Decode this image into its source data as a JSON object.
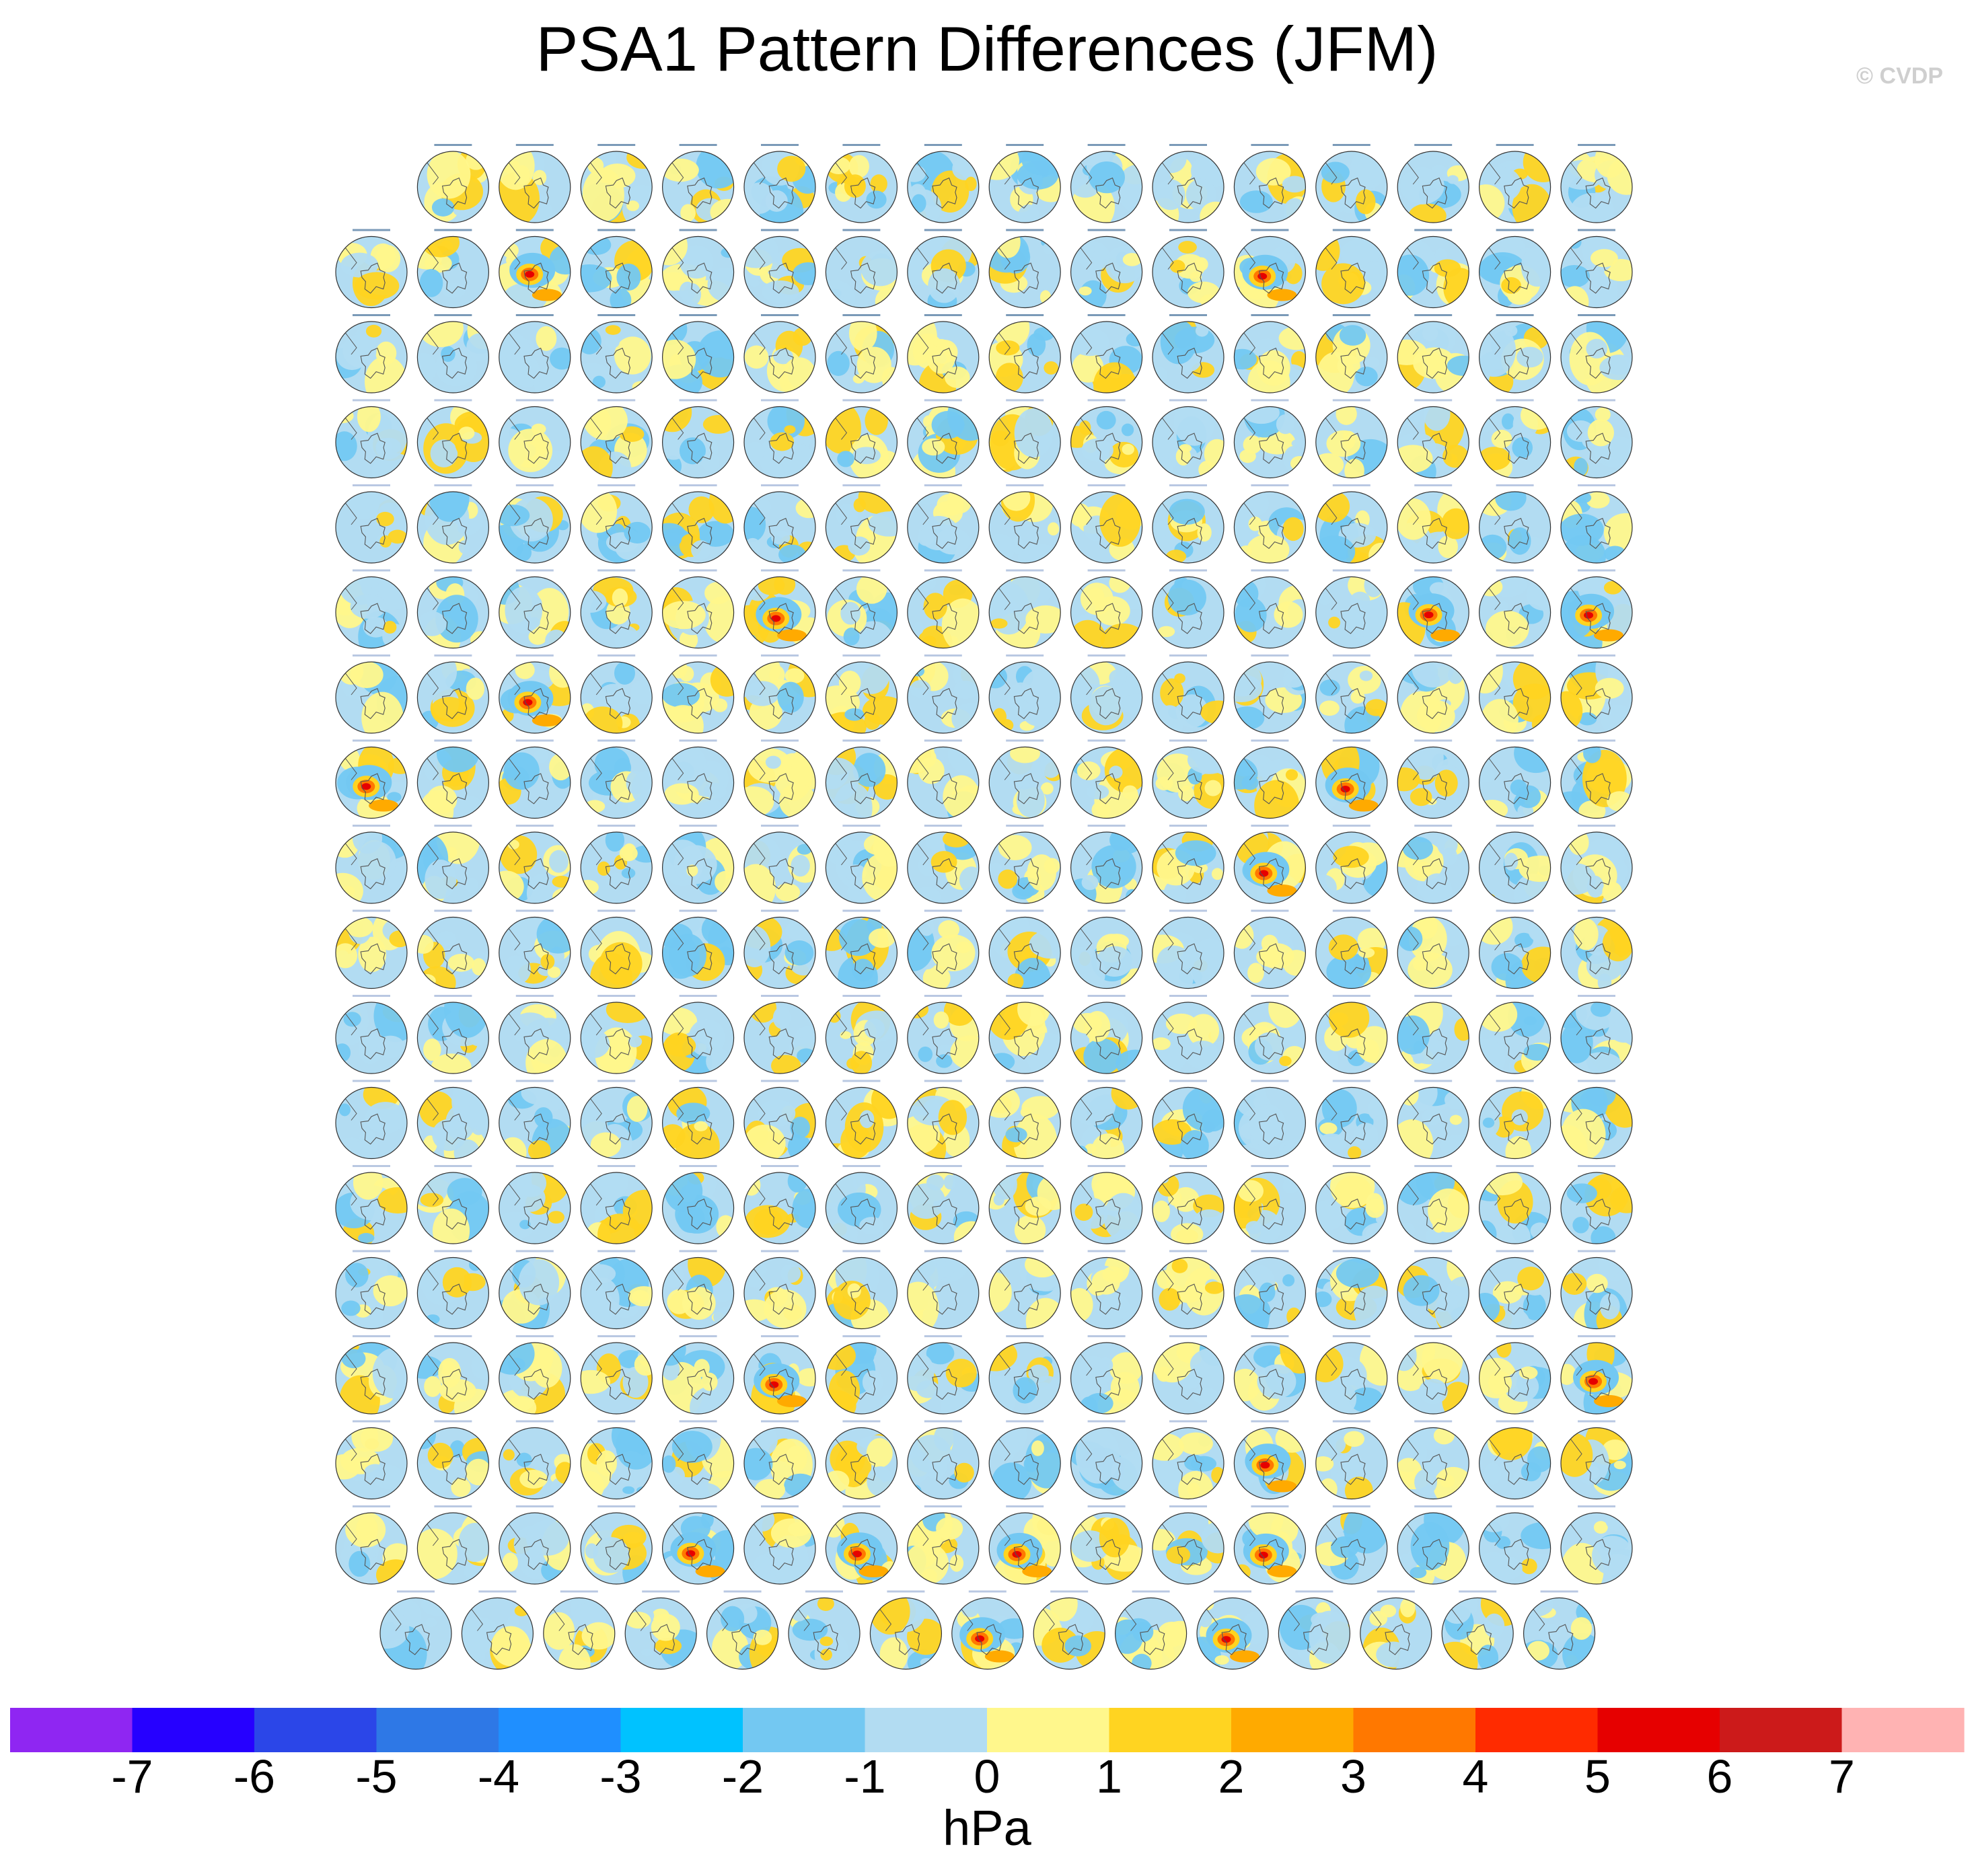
{
  "figure": {
    "title": "PSA1 Pattern Differences (JFM)",
    "watermark": "© CVDP"
  },
  "panel_grid": {
    "rows": [
      15,
      16,
      16,
      16,
      16,
      16,
      16,
      16,
      16,
      16,
      16,
      16,
      16,
      16,
      16,
      16,
      16,
      15
    ],
    "description_map": "polar stereographic Southern Hemisphere difference maps"
  },
  "colorbar": {
    "unit": "hPa",
    "tick_labels": [
      "-7",
      "-6",
      "-5",
      "-4",
      "-3",
      "-2",
      "-1",
      "0",
      "1",
      "2",
      "3",
      "4",
      "5",
      "6",
      "7"
    ],
    "colors": [
      "#8f26f2",
      "#2600ff",
      "#2b46e8",
      "#2e78e6",
      "#1f8fff",
      "#00c2ff",
      "#73c8f2",
      "#b2dcf2",
      "#fff78c",
      "#ffd421",
      "#ffaa00",
      "#ff7800",
      "#ff2b00",
      "#e60000",
      "#cc1a1a",
      "#ffb3b3"
    ]
  },
  "chart_data": {
    "type": "heatmap",
    "title": "PSA1 Pattern Differences (JFM)",
    "colorbar_label": "hPa",
    "levels": [
      -7,
      -6,
      -5,
      -4,
      -3,
      -2,
      -1,
      0,
      1,
      2,
      3,
      4,
      5,
      6,
      7
    ],
    "panel_count": 286,
    "strong_anomaly_panels": [
      {
        "row": 2,
        "col": 3,
        "extremes": "positive ~+5 core, negative ~-3 ring"
      },
      {
        "row": 2,
        "col": 12,
        "extremes": "positive ~+4 core, negative ~-3"
      },
      {
        "row": 6,
        "col": 6,
        "extremes": "positive ~+6 core"
      },
      {
        "row": 6,
        "col": 14,
        "extremes": "positive ~+3"
      },
      {
        "row": 6,
        "col": 16,
        "extremes": "positive ~+5 core, negative ~-3"
      },
      {
        "row": 7,
        "col": 3,
        "extremes": "positive ~+4"
      },
      {
        "row": 8,
        "col": 1,
        "extremes": "positive ~+5"
      },
      {
        "row": 8,
        "col": 13,
        "extremes": "positive ~+5 core, negative ~-3"
      },
      {
        "row": 9,
        "col": 12,
        "extremes": "positive ~+4, negative ~-3"
      },
      {
        "row": 15,
        "col": 6,
        "extremes": "negative ~-4, positive ~+4"
      },
      {
        "row": 15,
        "col": 16,
        "extremes": "negative ~-4, positive ~+4"
      },
      {
        "row": 16,
        "col": 12,
        "extremes": "positive ~+5, negative ~-2"
      },
      {
        "row": 17,
        "col": 5,
        "extremes": "positive ~+5"
      },
      {
        "row": 17,
        "col": 7,
        "extremes": "positive ~+5"
      },
      {
        "row": 17,
        "col": 9,
        "extremes": "positive ~+5"
      },
      {
        "row": 17,
        "col": 12,
        "extremes": "positive ~+4"
      },
      {
        "row": 18,
        "col": 8,
        "extremes": "positive ~+5"
      },
      {
        "row": 18,
        "col": 11,
        "extremes": "positive ~+6"
      }
    ]
  }
}
